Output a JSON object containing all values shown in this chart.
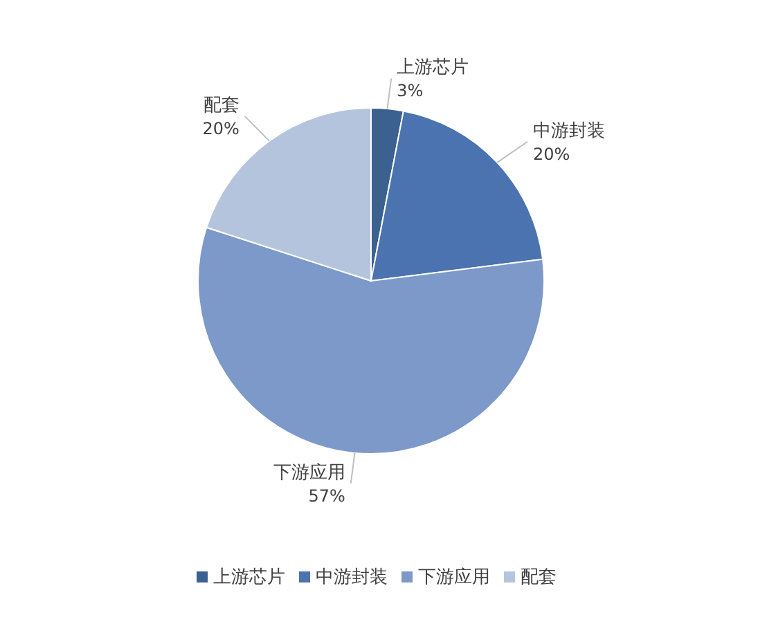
{
  "chart_data": {
    "type": "pie",
    "categories": [
      "上游芯片",
      "中游封装",
      "下游应用",
      "配套"
    ],
    "values": [
      3,
      20,
      57,
      20
    ],
    "value_labels": [
      "3%",
      "20%",
      "57%",
      "20%"
    ],
    "colors": [
      "#3b6190",
      "#4a73b0",
      "#7c99ca",
      "#b5c4dd"
    ],
    "legend": "bottom"
  }
}
